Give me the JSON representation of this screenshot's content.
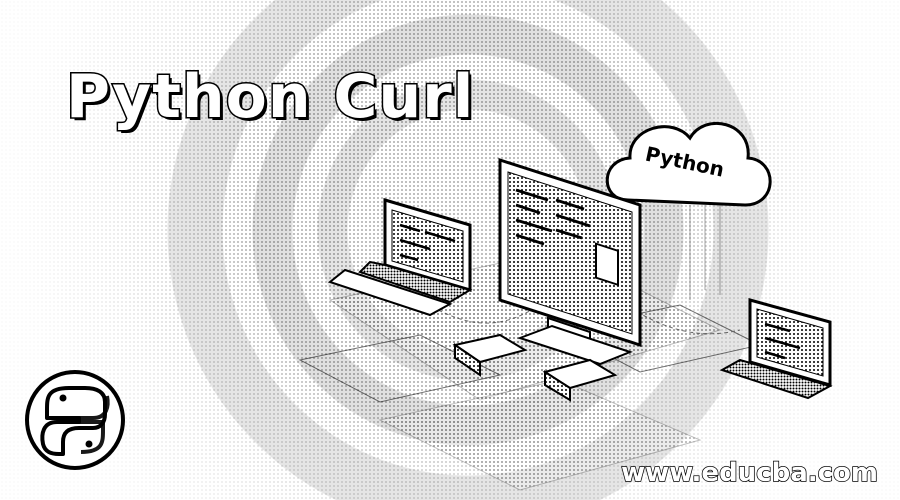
{
  "banner": {
    "title": "Python Curl",
    "cloud_label": "Python",
    "watermark": "www.educba.com"
  },
  "icons": {
    "logo": "python-logo-icon",
    "cloud": "cloud-icon",
    "monitor": "desktop-monitor-icon",
    "laptop_left": "laptop-icon",
    "laptop_right": "laptop-icon"
  },
  "colors": {
    "background": "#ffffff",
    "ink": "#000000"
  }
}
